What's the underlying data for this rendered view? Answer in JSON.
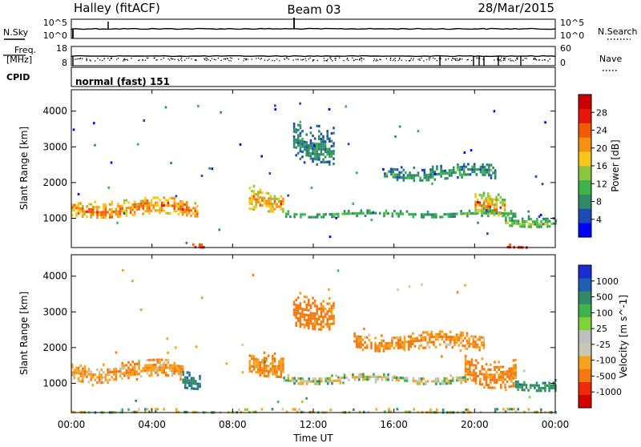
{
  "header": {
    "station": "Halley (fitACF)",
    "beam": "Beam 03",
    "date": "28/Mar/2015"
  },
  "top_panels": {
    "nsky_label": "N.Sky",
    "nsearch_label": "N.Search",
    "noise_ticks": [
      "10^5",
      "10^0"
    ],
    "freq_label_1": "Freq.",
    "freq_label_2": "[MHz]",
    "freq_ticks": [
      "18",
      "8"
    ],
    "nave_label": "Nave",
    "nave_ticks": [
      "60",
      "0"
    ],
    "cpid_label": "CPID",
    "cpid_value": "normal (fast) 151"
  },
  "x_axis": {
    "label": "Time UT",
    "ticks": [
      "00:00",
      "04:00",
      "08:00",
      "12:00",
      "16:00",
      "20:00",
      "00:00"
    ],
    "range_hours": [
      0,
      24
    ]
  },
  "colors": {
    "power": [
      "#0000ff",
      "#1c4ab4",
      "#2f8a6a",
      "#3cb44a",
      "#8cc63f",
      "#f7c61a",
      "#f79010",
      "#f35a06",
      "#e8160a",
      "#c80000"
    ],
    "velocity": [
      "#1a2bd0",
      "#1f5fb0",
      "#2f8a6a",
      "#3cb44a",
      "#7ed23a",
      "#bfbfbf",
      "#c8c8b0",
      "#f7a21a",
      "#f47a10",
      "#ee2a08",
      "#d40000"
    ],
    "ground": "#bfbfbf"
  },
  "chart_data": [
    {
      "type": "heatmap",
      "name": "power",
      "ylabel": "Slant Range [km]",
      "yticks": [
        "1000",
        "2000",
        "3000",
        "4000"
      ],
      "ylim": [
        180,
        4600
      ],
      "colorbar": {
        "label": "Power [dB]",
        "ticks": [
          "4",
          "8",
          "12",
          "16",
          "20",
          "24",
          "28"
        ],
        "range": [
          0,
          30
        ]
      },
      "features": [
        {
          "t0": 0.0,
          "t1": 6.3,
          "r_center": 1300,
          "r_width": 500,
          "value": 16,
          "peak": 26
        },
        {
          "t0": 6.0,
          "t1": 6.7,
          "r_center": 250,
          "r_width": 100,
          "value": 24,
          "peak": 28
        },
        {
          "t0": 8.8,
          "t1": 10.5,
          "r_center": 1600,
          "r_width": 700,
          "value": 14,
          "peak": 24
        },
        {
          "t0": 10.5,
          "t1": 22.0,
          "r_center": 1150,
          "r_width": 160,
          "value": 8,
          "peak": 12
        },
        {
          "t0": 11.0,
          "t1": 13.0,
          "r_center": 3200,
          "r_width": 1100,
          "value": 6,
          "peak": 10
        },
        {
          "t0": 15.5,
          "t1": 21.0,
          "r_center": 2300,
          "r_width": 400,
          "value": 6,
          "peak": 12
        },
        {
          "t0": 20.0,
          "t1": 21.5,
          "r_center": 1500,
          "r_width": 700,
          "value": 12,
          "peak": 26
        },
        {
          "t0": 21.5,
          "t1": 22.6,
          "r_center": 250,
          "r_width": 100,
          "value": 24,
          "peak": 28
        },
        {
          "t0": 21.5,
          "t1": 24.0,
          "r_center": 950,
          "r_width": 350,
          "value": 8,
          "peak": 16
        }
      ]
    },
    {
      "type": "heatmap",
      "name": "velocity",
      "ylabel": "Slant Range [km]",
      "yticks": [
        "1000",
        "2000",
        "3000",
        "4000"
      ],
      "ylim": [
        180,
        4600
      ],
      "colorbar": {
        "label": "Velocity [m s^-1]",
        "ticks": [
          "1000",
          "500",
          "100",
          "25",
          "-25",
          "-100",
          "-500",
          "-1000"
        ]
      },
      "features": [
        {
          "t0": 0.0,
          "t1": 5.5,
          "r_center": 1350,
          "r_width": 550,
          "value": -150
        },
        {
          "t0": 5.5,
          "t1": 6.4,
          "r_center": 1100,
          "r_width": 500,
          "value": 300
        },
        {
          "t0": 8.8,
          "t1": 10.5,
          "r_center": 1600,
          "r_width": 700,
          "value": -200
        },
        {
          "t0": 10.5,
          "t1": 19.5,
          "r_center": 1150,
          "r_width": 220,
          "value": 0
        },
        {
          "t0": 11.0,
          "t1": 13.0,
          "r_center": 3100,
          "r_width": 1000,
          "value": -300
        },
        {
          "t0": 14.0,
          "t1": 20.5,
          "r_center": 2200,
          "r_width": 450,
          "value": -200
        },
        {
          "t0": 19.5,
          "t1": 22.0,
          "r_center": 1400,
          "r_width": 800,
          "value": -250
        },
        {
          "t0": 22.0,
          "t1": 24.0,
          "r_center": 1000,
          "r_width": 300,
          "value": 200
        },
        {
          "t0": 0.0,
          "t1": 24.0,
          "r_center": 260,
          "r_width": 80,
          "value": 0
        }
      ]
    }
  ]
}
